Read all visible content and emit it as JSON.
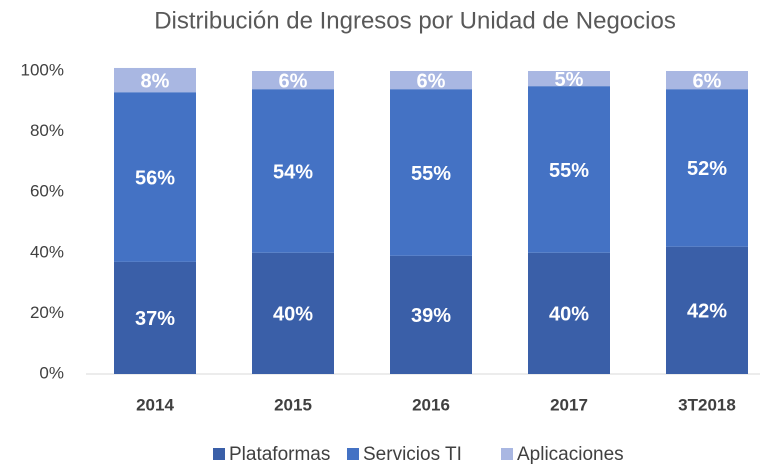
{
  "chart_data": {
    "type": "stacked_bar",
    "title": "Distribución de Ingresos por Unidad de Negocios",
    "categories": [
      "2014",
      "2015",
      "2016",
      "2017",
      "3T2018"
    ],
    "series": [
      {
        "name": "Plataformas",
        "color": "#3a5fa8",
        "values": [
          37,
          40,
          39,
          40,
          42
        ],
        "value_labels": [
          "37%",
          "40%",
          "39%",
          "40%",
          "42%"
        ]
      },
      {
        "name": "Servicios TI",
        "color": "#4472c4",
        "values": [
          56,
          54,
          55,
          55,
          52
        ],
        "value_labels": [
          "56%",
          "54%",
          "55%",
          "55%",
          "52%"
        ]
      },
      {
        "name": "Aplicaciones",
        "color": "#a9b7e2",
        "values": [
          8,
          6,
          6,
          5,
          6
        ],
        "value_labels": [
          "8%",
          "6%",
          "6%",
          "5%",
          "6%"
        ]
      }
    ],
    "ylim": [
      0,
      100
    ],
    "yticks": [
      {
        "value": 0,
        "label": "0%"
      },
      {
        "value": 20,
        "label": "20%"
      },
      {
        "value": 40,
        "label": "40%"
      },
      {
        "value": 60,
        "label": "60%"
      },
      {
        "value": 80,
        "label": "80%"
      },
      {
        "value": 100,
        "label": "100%"
      }
    ],
    "legend": "bottom"
  }
}
